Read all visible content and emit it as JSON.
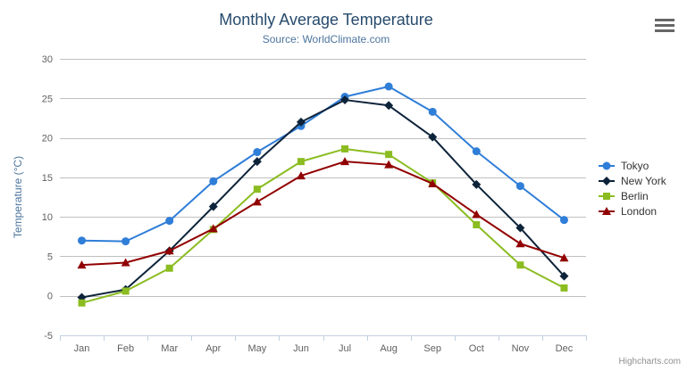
{
  "chart_data": {
    "type": "line",
    "title": "Monthly Average Temperature",
    "subtitle": "Source: WorldClimate.com",
    "categories": [
      "Jan",
      "Feb",
      "Mar",
      "Apr",
      "May",
      "Jun",
      "Jul",
      "Aug",
      "Sep",
      "Oct",
      "Nov",
      "Dec"
    ],
    "series": [
      {
        "name": "Tokyo",
        "color": "#2f7ed8",
        "marker": "circle",
        "values": [
          7.0,
          6.9,
          9.5,
          14.5,
          18.2,
          21.5,
          25.2,
          26.5,
          23.3,
          18.3,
          13.9,
          9.6
        ]
      },
      {
        "name": "New York",
        "color": "#0d233a",
        "marker": "diamond",
        "values": [
          -0.2,
          0.8,
          5.7,
          11.3,
          17.0,
          22.0,
          24.8,
          24.1,
          20.1,
          14.1,
          8.6,
          2.5
        ]
      },
      {
        "name": "Berlin",
        "color": "#8bbc21",
        "marker": "square",
        "values": [
          -0.9,
          0.6,
          3.5,
          8.4,
          13.5,
          17.0,
          18.6,
          17.9,
          14.3,
          9.0,
          3.9,
          1.0
        ]
      },
      {
        "name": "London",
        "color": "#910000",
        "marker": "triangle",
        "values": [
          3.9,
          4.2,
          5.7,
          8.5,
          11.9,
          15.2,
          17.0,
          16.6,
          14.2,
          10.3,
          6.6,
          4.8
        ]
      }
    ],
    "xlabel": "",
    "ylabel": "Temperature (°C)",
    "ylim": [
      -5,
      30
    ],
    "yticks": [
      30,
      25,
      20,
      15,
      10,
      5,
      0,
      -5
    ],
    "grid": true,
    "legend_position": "right"
  },
  "credits": "Highcharts.com",
  "icons": {
    "export_menu": "hamburger-menu-icon"
  },
  "colors": {
    "title": "#274b6d",
    "subtitle": "#4d759e",
    "axis_title": "#4d759e",
    "tick_label": "#606060",
    "gridline": "#c0c0c0",
    "axis_line": "#c0d0e0",
    "legend_text": "#333333",
    "credits": "#909090"
  }
}
